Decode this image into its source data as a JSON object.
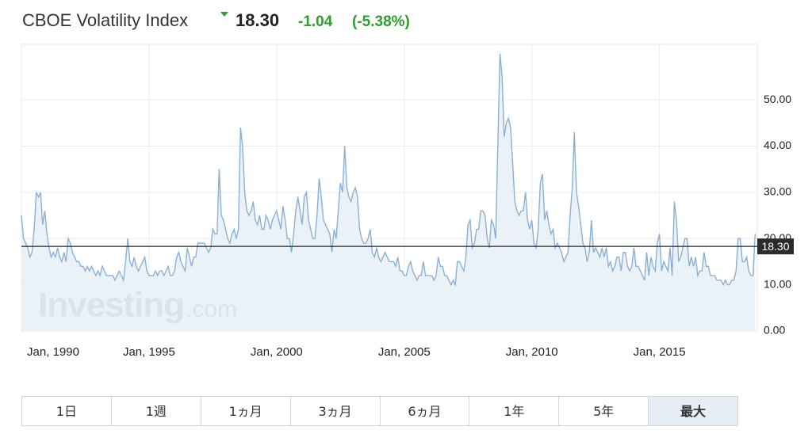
{
  "chart_data": {
    "type": "line",
    "title": "CBOE Volatility Index",
    "last": {
      "value": 18.3,
      "label": "18.30"
    },
    "change": "-1.04",
    "change_pct": "(-5.38%)",
    "watermark": [
      "Investing",
      ".com"
    ],
    "buttons": [
      "1日",
      "1週",
      "1ヵ月",
      "3ヵ月",
      "6ヵ月",
      "1年",
      "5年",
      "最大"
    ],
    "active_button": "最大",
    "color": "#8ab0d6",
    "fill": "#e8f0f6",
    "grid": true,
    "ylim": [
      0,
      62
    ],
    "yticks": [
      {
        "value": 0,
        "label": "0.00"
      },
      {
        "value": 10,
        "label": "10.00"
      },
      {
        "value": 20,
        "label": "20.00"
      },
      {
        "value": 30,
        "label": "30.00"
      },
      {
        "value": 40,
        "label": "40.00"
      },
      {
        "value": 50,
        "label": "50.00"
      }
    ],
    "xlim": [
      "1990-01",
      "2018-11"
    ],
    "xticks": [
      {
        "value": "1990-01",
        "label": "Jan, 1990"
      },
      {
        "value": "1995-01",
        "label": "Jan, 1995"
      },
      {
        "value": "2000-01",
        "label": "Jan, 2000"
      },
      {
        "value": "2005-01",
        "label": "Jan, 2005"
      },
      {
        "value": "2010-01",
        "label": "Jan, 2010"
      },
      {
        "value": "2015-01",
        "label": "Jan, 2015"
      }
    ],
    "x": [
      "1990-01",
      "1990-02",
      "1990-03",
      "1990-04",
      "1990-05",
      "1990-06",
      "1990-07",
      "1990-08",
      "1990-09",
      "1990-10",
      "1990-11",
      "1990-12",
      "1991-01",
      "1991-02",
      "1991-03",
      "1991-04",
      "1991-05",
      "1991-06",
      "1991-07",
      "1991-08",
      "1991-09",
      "1991-10",
      "1991-11",
      "1991-12",
      "1992-01",
      "1992-02",
      "1992-03",
      "1992-04",
      "1992-05",
      "1992-06",
      "1992-07",
      "1992-08",
      "1992-09",
      "1992-10",
      "1992-11",
      "1992-12",
      "1993-01",
      "1993-02",
      "1993-03",
      "1993-04",
      "1993-05",
      "1993-06",
      "1993-07",
      "1993-08",
      "1993-09",
      "1993-10",
      "1993-11",
      "1993-12",
      "1994-01",
      "1994-02",
      "1994-03",
      "1994-04",
      "1994-05",
      "1994-06",
      "1994-07",
      "1994-08",
      "1994-09",
      "1994-10",
      "1994-11",
      "1994-12",
      "1995-01",
      "1995-02",
      "1995-03",
      "1995-04",
      "1995-05",
      "1995-06",
      "1995-07",
      "1995-08",
      "1995-09",
      "1995-10",
      "1995-11",
      "1995-12",
      "1996-01",
      "1996-02",
      "1996-03",
      "1996-04",
      "1996-05",
      "1996-06",
      "1996-07",
      "1996-08",
      "1996-09",
      "1996-10",
      "1996-11",
      "1996-12",
      "1997-01",
      "1997-02",
      "1997-03",
      "1997-04",
      "1997-05",
      "1997-06",
      "1997-07",
      "1997-08",
      "1997-09",
      "1997-10",
      "1997-11",
      "1997-12",
      "1998-01",
      "1998-02",
      "1998-03",
      "1998-04",
      "1998-05",
      "1998-06",
      "1998-07",
      "1998-08",
      "1998-09",
      "1998-10",
      "1998-11",
      "1998-12",
      "1999-01",
      "1999-02",
      "1999-03",
      "1999-04",
      "1999-05",
      "1999-06",
      "1999-07",
      "1999-08",
      "1999-09",
      "1999-10",
      "1999-11",
      "1999-12",
      "2000-01",
      "2000-02",
      "2000-03",
      "2000-04",
      "2000-05",
      "2000-06",
      "2000-07",
      "2000-08",
      "2000-09",
      "2000-10",
      "2000-11",
      "2000-12",
      "2001-01",
      "2001-02",
      "2001-03",
      "2001-04",
      "2001-05",
      "2001-06",
      "2001-07",
      "2001-08",
      "2001-09",
      "2001-10",
      "2001-11",
      "2001-12",
      "2002-01",
      "2002-02",
      "2002-03",
      "2002-04",
      "2002-05",
      "2002-06",
      "2002-07",
      "2002-08",
      "2002-09",
      "2002-10",
      "2002-11",
      "2002-12",
      "2003-01",
      "2003-02",
      "2003-03",
      "2003-04",
      "2003-05",
      "2003-06",
      "2003-07",
      "2003-08",
      "2003-09",
      "2003-10",
      "2003-11",
      "2003-12",
      "2004-01",
      "2004-02",
      "2004-03",
      "2004-04",
      "2004-05",
      "2004-06",
      "2004-07",
      "2004-08",
      "2004-09",
      "2004-10",
      "2004-11",
      "2004-12",
      "2005-01",
      "2005-02",
      "2005-03",
      "2005-04",
      "2005-05",
      "2005-06",
      "2005-07",
      "2005-08",
      "2005-09",
      "2005-10",
      "2005-11",
      "2005-12",
      "2006-01",
      "2006-02",
      "2006-03",
      "2006-04",
      "2006-05",
      "2006-06",
      "2006-07",
      "2006-08",
      "2006-09",
      "2006-10",
      "2006-11",
      "2006-12",
      "2007-01",
      "2007-02",
      "2007-03",
      "2007-04",
      "2007-05",
      "2007-06",
      "2007-07",
      "2007-08",
      "2007-09",
      "2007-10",
      "2007-11",
      "2007-12",
      "2008-01",
      "2008-02",
      "2008-03",
      "2008-04",
      "2008-05",
      "2008-06",
      "2008-07",
      "2008-08",
      "2008-09",
      "2008-10",
      "2008-11",
      "2008-12",
      "2009-01",
      "2009-02",
      "2009-03",
      "2009-04",
      "2009-05",
      "2009-06",
      "2009-07",
      "2009-08",
      "2009-09",
      "2009-10",
      "2009-11",
      "2009-12",
      "2010-01",
      "2010-02",
      "2010-03",
      "2010-04",
      "2010-05",
      "2010-06",
      "2010-07",
      "2010-08",
      "2010-09",
      "2010-10",
      "2010-11",
      "2010-12",
      "2011-01",
      "2011-02",
      "2011-03",
      "2011-04",
      "2011-05",
      "2011-06",
      "2011-07",
      "2011-08",
      "2011-09",
      "2011-10",
      "2011-11",
      "2011-12",
      "2012-01",
      "2012-02",
      "2012-03",
      "2012-04",
      "2012-05",
      "2012-06",
      "2012-07",
      "2012-08",
      "2012-09",
      "2012-10",
      "2012-11",
      "2012-12",
      "2013-01",
      "2013-02",
      "2013-03",
      "2013-04",
      "2013-05",
      "2013-06",
      "2013-07",
      "2013-08",
      "2013-09",
      "2013-10",
      "2013-11",
      "2013-12",
      "2014-01",
      "2014-02",
      "2014-03",
      "2014-04",
      "2014-05",
      "2014-06",
      "2014-07",
      "2014-08",
      "2014-09",
      "2014-10",
      "2014-11",
      "2014-12",
      "2015-01",
      "2015-02",
      "2015-03",
      "2015-04",
      "2015-05",
      "2015-06",
      "2015-07",
      "2015-08",
      "2015-09",
      "2015-10",
      "2015-11",
      "2015-12",
      "2016-01",
      "2016-02",
      "2016-03",
      "2016-04",
      "2016-05",
      "2016-06",
      "2016-07",
      "2016-08",
      "2016-09",
      "2016-10",
      "2016-11",
      "2016-12",
      "2017-01",
      "2017-02",
      "2017-03",
      "2017-04",
      "2017-05",
      "2017-06",
      "2017-07",
      "2017-08",
      "2017-09",
      "2017-10",
      "2017-11",
      "2017-12",
      "2018-01",
      "2018-02",
      "2018-03",
      "2018-04",
      "2018-05",
      "2018-06",
      "2018-07",
      "2018-08",
      "2018-09",
      "2018-10"
    ],
    "values": [
      25,
      20,
      19,
      18,
      16,
      17,
      22,
      30,
      29,
      30,
      23,
      26,
      21,
      18,
      16,
      17,
      16,
      18,
      16,
      15,
      17,
      15,
      20,
      19,
      17,
      16,
      15,
      15,
      14,
      14,
      13,
      14,
      13,
      14,
      13,
      12,
      13,
      12,
      14,
      13,
      12,
      12,
      12,
      12,
      11,
      12,
      13,
      12,
      11,
      15,
      20,
      15,
      14,
      16,
      14,
      13,
      14,
      15,
      16,
      13,
      12,
      12,
      12,
      13,
      12,
      13,
      13,
      12,
      13,
      14,
      12,
      12,
      13,
      16,
      17,
      15,
      14,
      13,
      18,
      16,
      14,
      16,
      16,
      19,
      19,
      19,
      19,
      18,
      17,
      18,
      22,
      21,
      21,
      35,
      25,
      24,
      22,
      20,
      19,
      21,
      22,
      20,
      22,
      44,
      40,
      30,
      26,
      25,
      26,
      28,
      24,
      23,
      25,
      22,
      22,
      25,
      24,
      22,
      24,
      25,
      26,
      24,
      22,
      27,
      24,
      20,
      20,
      17,
      21,
      26,
      29,
      26,
      23,
      29,
      30,
      24,
      22,
      20,
      20,
      25,
      33,
      29,
      24,
      23,
      22,
      21,
      17,
      22,
      20,
      26,
      32,
      30,
      40,
      31,
      29,
      28,
      30,
      31,
      29,
      22,
      20,
      19,
      19,
      20,
      22,
      17,
      16,
      18,
      16,
      15,
      16,
      17,
      16,
      15,
      15,
      15,
      14,
      16,
      13,
      13,
      12,
      12,
      14,
      15,
      13,
      12,
      11,
      12,
      12,
      15,
      12,
      12,
      12,
      12,
      11,
      12,
      16,
      14,
      14,
      12,
      12,
      11,
      10,
      11,
      10,
      15,
      15,
      14,
      13,
      16,
      23,
      24,
      18,
      19,
      22,
      22,
      26,
      26,
      25,
      20,
      18,
      24,
      23,
      20,
      40,
      60,
      55,
      42,
      45,
      46,
      44,
      36,
      28,
      26,
      25,
      26,
      26,
      30,
      24,
      22,
      24,
      19,
      18,
      22,
      32,
      34,
      24,
      26,
      23,
      21,
      22,
      18,
      19,
      18,
      17,
      15,
      16,
      17,
      25,
      31,
      43,
      30,
      27,
      23,
      19,
      18,
      15,
      17,
      24,
      17,
      18,
      17,
      16,
      18,
      16,
      18,
      14,
      15,
      13,
      14,
      16,
      16,
      13,
      17,
      17,
      14,
      13,
      14,
      18,
      14,
      14,
      13,
      12,
      11,
      17,
      12,
      16,
      14,
      13,
      19,
      21,
      13,
      15,
      14,
      13,
      18,
      12,
      28,
      24,
      15,
      16,
      18,
      20,
      20,
      14,
      16,
      14,
      16,
      12,
      13,
      13,
      17,
      14,
      14,
      12,
      12,
      12,
      11,
      11,
      11,
      10,
      11,
      10,
      10,
      11,
      11,
      13,
      20,
      20,
      15,
      15,
      16,
      13,
      12,
      12,
      21
    ]
  }
}
